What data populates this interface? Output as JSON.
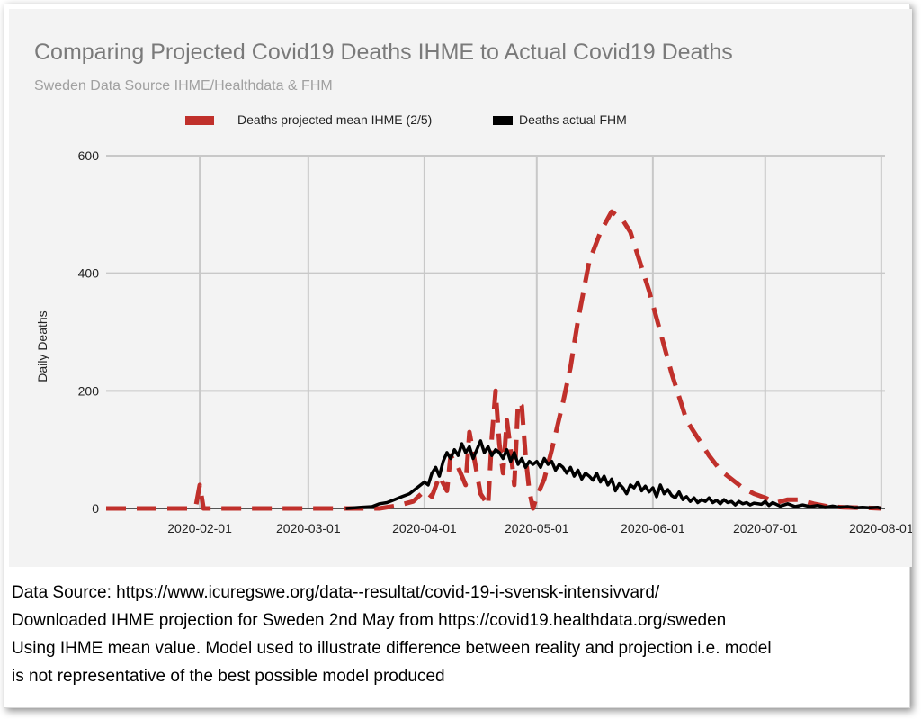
{
  "chart_data": {
    "type": "line",
    "title": "Comparing Projected Covid19 Deaths IHME to Actual Covid19 Deaths",
    "subtitle": "Sweden Data Source IHME/Healthdata & FHM",
    "ylabel": "Daily Deaths",
    "xlabel": "",
    "ylim": [
      0,
      600
    ],
    "yticks": [
      "0",
      "200",
      "400",
      "600"
    ],
    "xticks": [
      "2020-02-01",
      "2020-03-01",
      "2020-04-01",
      "2020-05-01",
      "2020-06-01",
      "2020-07-01",
      "2020-08-01"
    ],
    "xrange": [
      "2020-01-07",
      "2020-08-02"
    ],
    "grid": true,
    "legend_position": "top",
    "series": [
      {
        "name": "Deaths projected mean IHME (2/5)",
        "color": "#c0302b",
        "style": "dashed",
        "points": [
          [
            "2020-01-07",
            0
          ],
          [
            "2020-01-29",
            0
          ],
          [
            "2020-01-31",
            5
          ],
          [
            "2020-02-01",
            40
          ],
          [
            "2020-02-02",
            0
          ],
          [
            "2020-03-15",
            0
          ],
          [
            "2020-03-20",
            0
          ],
          [
            "2020-03-25",
            5
          ],
          [
            "2020-03-29",
            12
          ],
          [
            "2020-04-01",
            30
          ],
          [
            "2020-04-03",
            20
          ],
          [
            "2020-04-05",
            55
          ],
          [
            "2020-04-07",
            30
          ],
          [
            "2020-04-08",
            90
          ],
          [
            "2020-04-10",
            70
          ],
          [
            "2020-04-12",
            40
          ],
          [
            "2020-04-13",
            130
          ],
          [
            "2020-04-15",
            60
          ],
          [
            "2020-04-16",
            25
          ],
          [
            "2020-04-18",
            5
          ],
          [
            "2020-04-19",
            120
          ],
          [
            "2020-04-20",
            200
          ],
          [
            "2020-04-21",
            110
          ],
          [
            "2020-04-22",
            60
          ],
          [
            "2020-04-23",
            150
          ],
          [
            "2020-04-24",
            100
          ],
          [
            "2020-04-25",
            40
          ],
          [
            "2020-04-26",
            180
          ],
          [
            "2020-04-27",
            175
          ],
          [
            "2020-04-28",
            90
          ],
          [
            "2020-04-29",
            30
          ],
          [
            "2020-04-30",
            0
          ],
          [
            "2020-05-01",
            20
          ],
          [
            "2020-05-03",
            50
          ],
          [
            "2020-05-05",
            100
          ],
          [
            "2020-05-08",
            180
          ],
          [
            "2020-05-10",
            240
          ],
          [
            "2020-05-12",
            320
          ],
          [
            "2020-05-15",
            420
          ],
          [
            "2020-05-18",
            470
          ],
          [
            "2020-05-21",
            505
          ],
          [
            "2020-05-24",
            490
          ],
          [
            "2020-05-26",
            470
          ],
          [
            "2020-05-28",
            430
          ],
          [
            "2020-05-31",
            370
          ],
          [
            "2020-06-03",
            300
          ],
          [
            "2020-06-06",
            230
          ],
          [
            "2020-06-10",
            150
          ],
          [
            "2020-06-13",
            120
          ],
          [
            "2020-06-16",
            90
          ],
          [
            "2020-06-19",
            65
          ],
          [
            "2020-06-22",
            50
          ],
          [
            "2020-06-25",
            35
          ],
          [
            "2020-06-28",
            25
          ],
          [
            "2020-07-01",
            18
          ],
          [
            "2020-07-04",
            10
          ],
          [
            "2020-07-07",
            15
          ],
          [
            "2020-07-10",
            15
          ],
          [
            "2020-07-14",
            8
          ],
          [
            "2020-07-18",
            3
          ],
          [
            "2020-07-22",
            2
          ],
          [
            "2020-07-28",
            1
          ],
          [
            "2020-08-01",
            0
          ]
        ]
      },
      {
        "name": "Deaths actual FHM",
        "color": "#000000",
        "style": "solid",
        "points": [
          [
            "2020-03-11",
            0
          ],
          [
            "2020-03-15",
            2
          ],
          [
            "2020-03-18",
            3
          ],
          [
            "2020-03-20",
            8
          ],
          [
            "2020-03-22",
            10
          ],
          [
            "2020-03-24",
            15
          ],
          [
            "2020-03-26",
            20
          ],
          [
            "2020-03-28",
            25
          ],
          [
            "2020-03-30",
            35
          ],
          [
            "2020-04-01",
            45
          ],
          [
            "2020-04-02",
            40
          ],
          [
            "2020-04-03",
            60
          ],
          [
            "2020-04-04",
            70
          ],
          [
            "2020-04-05",
            55
          ],
          [
            "2020-04-06",
            80
          ],
          [
            "2020-04-07",
            95
          ],
          [
            "2020-04-08",
            85
          ],
          [
            "2020-04-09",
            100
          ],
          [
            "2020-04-10",
            90
          ],
          [
            "2020-04-11",
            110
          ],
          [
            "2020-04-12",
            95
          ],
          [
            "2020-04-13",
            105
          ],
          [
            "2020-04-14",
            85
          ],
          [
            "2020-04-15",
            100
          ],
          [
            "2020-04-16",
            115
          ],
          [
            "2020-04-17",
            95
          ],
          [
            "2020-04-18",
            105
          ],
          [
            "2020-04-19",
            90
          ],
          [
            "2020-04-20",
            100
          ],
          [
            "2020-04-21",
            95
          ],
          [
            "2020-04-22",
            85
          ],
          [
            "2020-04-23",
            100
          ],
          [
            "2020-04-24",
            80
          ],
          [
            "2020-04-25",
            95
          ],
          [
            "2020-04-26",
            75
          ],
          [
            "2020-04-27",
            85
          ],
          [
            "2020-04-28",
            70
          ],
          [
            "2020-04-29",
            80
          ],
          [
            "2020-04-30",
            75
          ],
          [
            "2020-05-01",
            80
          ],
          [
            "2020-05-02",
            70
          ],
          [
            "2020-05-03",
            85
          ],
          [
            "2020-05-04",
            75
          ],
          [
            "2020-05-05",
            80
          ],
          [
            "2020-05-06",
            65
          ],
          [
            "2020-05-07",
            75
          ],
          [
            "2020-05-08",
            70
          ],
          [
            "2020-05-09",
            60
          ],
          [
            "2020-05-10",
            70
          ],
          [
            "2020-05-11",
            55
          ],
          [
            "2020-05-12",
            65
          ],
          [
            "2020-05-13",
            50
          ],
          [
            "2020-05-14",
            60
          ],
          [
            "2020-05-15",
            55
          ],
          [
            "2020-05-16",
            48
          ],
          [
            "2020-05-17",
            60
          ],
          [
            "2020-05-18",
            45
          ],
          [
            "2020-05-19",
            55
          ],
          [
            "2020-05-20",
            40
          ],
          [
            "2020-05-21",
            50
          ],
          [
            "2020-05-22",
            30
          ],
          [
            "2020-05-23",
            42
          ],
          [
            "2020-05-24",
            35
          ],
          [
            "2020-05-25",
            25
          ],
          [
            "2020-05-26",
            40
          ],
          [
            "2020-05-27",
            35
          ],
          [
            "2020-05-28",
            45
          ],
          [
            "2020-05-29",
            30
          ],
          [
            "2020-05-30",
            38
          ],
          [
            "2020-05-31",
            28
          ],
          [
            "2020-06-01",
            35
          ],
          [
            "2020-06-02",
            20
          ],
          [
            "2020-06-03",
            40
          ],
          [
            "2020-06-04",
            25
          ],
          [
            "2020-06-05",
            32
          ],
          [
            "2020-06-06",
            22
          ],
          [
            "2020-06-07",
            18
          ],
          [
            "2020-06-08",
            28
          ],
          [
            "2020-06-09",
            15
          ],
          [
            "2020-06-10",
            20
          ],
          [
            "2020-06-11",
            12
          ],
          [
            "2020-06-12",
            18
          ],
          [
            "2020-06-13",
            10
          ],
          [
            "2020-06-14",
            15
          ],
          [
            "2020-06-15",
            12
          ],
          [
            "2020-06-16",
            18
          ],
          [
            "2020-06-17",
            10
          ],
          [
            "2020-06-18",
            14
          ],
          [
            "2020-06-19",
            8
          ],
          [
            "2020-06-20",
            15
          ],
          [
            "2020-06-21",
            10
          ],
          [
            "2020-06-22",
            12
          ],
          [
            "2020-06-23",
            6
          ],
          [
            "2020-06-24",
            12
          ],
          [
            "2020-06-25",
            8
          ],
          [
            "2020-06-26",
            10
          ],
          [
            "2020-06-27",
            6
          ],
          [
            "2020-06-28",
            9
          ],
          [
            "2020-06-30",
            7
          ],
          [
            "2020-07-01",
            12
          ],
          [
            "2020-07-02",
            5
          ],
          [
            "2020-07-03",
            10
          ],
          [
            "2020-07-05",
            4
          ],
          [
            "2020-07-07",
            8
          ],
          [
            "2020-07-09",
            3
          ],
          [
            "2020-07-11",
            6
          ],
          [
            "2020-07-13",
            3
          ],
          [
            "2020-07-15",
            5
          ],
          [
            "2020-07-17",
            2
          ],
          [
            "2020-07-19",
            4
          ],
          [
            "2020-07-21",
            2
          ],
          [
            "2020-07-23",
            3
          ],
          [
            "2020-07-25",
            1
          ],
          [
            "2020-07-27",
            2
          ],
          [
            "2020-07-29",
            1
          ],
          [
            "2020-07-31",
            2
          ],
          [
            "2020-08-01",
            0
          ]
        ]
      }
    ]
  },
  "notes": [
    "Data Source: https://www.icuregswe.org/data--resultat/covid-19-i-svensk-intensivvard/",
    "Downloaded IHME projection for Sweden 2nd May from https://covid19.healthdata.org/sweden",
    "Using IHME mean value. Model used to illustrate difference between reality and projection i.e. model",
    "is not representative of the best possible model produced"
  ]
}
